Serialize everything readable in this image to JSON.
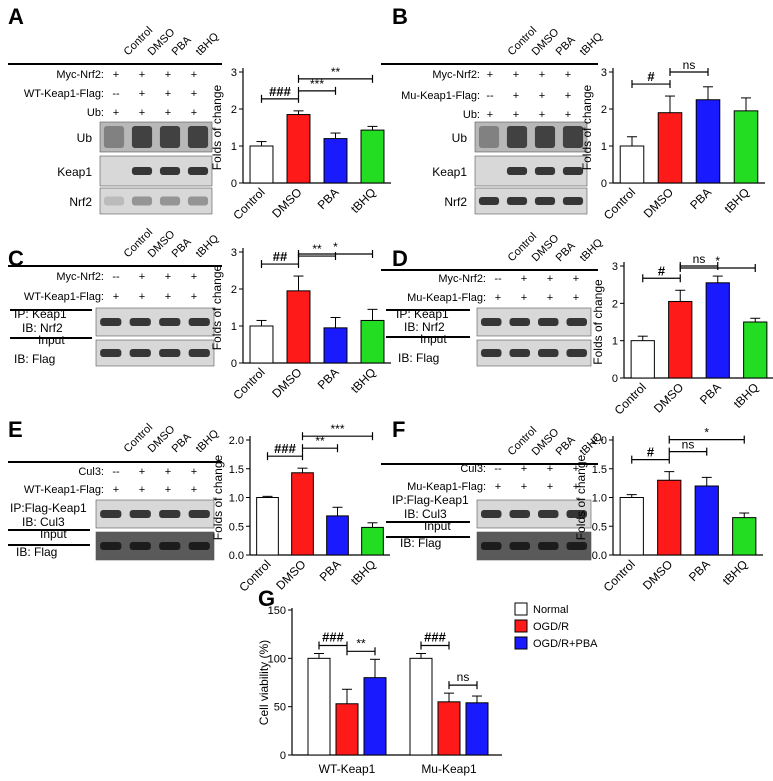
{
  "panels": [
    {
      "id": "A",
      "letter": "A",
      "conditions": [
        "Control",
        "DMSO",
        "PBA",
        "tBHQ"
      ],
      "rows": [
        {
          "label": "Myc-Nrf2:",
          "marks": [
            "+",
            "+",
            "+",
            "+"
          ]
        },
        {
          "label": "WT-Keap1-Flag:",
          "marks": [
            "--",
            "+",
            "+",
            "+"
          ]
        },
        {
          "label": "Ub:",
          "marks": [
            "+",
            "+",
            "+",
            "+"
          ]
        }
      ],
      "blots": [
        {
          "label": "Ub",
          "texture": "smear"
        },
        {
          "label": "Keap1",
          "texture": "bands-no-first"
        },
        {
          "label": "Nrf2",
          "texture": "faint"
        }
      ],
      "section_labels": []
    },
    {
      "id": "B",
      "letter": "B",
      "conditions": [
        "Control",
        "DMSO",
        "PBA",
        "tBHQ"
      ],
      "rows": [
        {
          "label": "Myc-Nrf2:",
          "marks": [
            "+",
            "+",
            "+",
            "+"
          ]
        },
        {
          "label": "Mu-Keap1-Flag:",
          "marks": [
            "--",
            "+",
            "+",
            "+"
          ]
        },
        {
          "label": "Ub:",
          "marks": [
            "+",
            "+",
            "+",
            "+"
          ]
        }
      ],
      "blots": [
        {
          "label": "Ub",
          "texture": "smear"
        },
        {
          "label": "Keap1",
          "texture": "bands-no-first"
        },
        {
          "label": "Nrf2",
          "texture": "bands"
        }
      ],
      "section_labels": []
    },
    {
      "id": "C",
      "letter": "C",
      "conditions": [
        "Control",
        "DMSO",
        "PBA",
        "tBHQ"
      ],
      "rows": [
        {
          "label": "Myc-Nrf2:",
          "marks": [
            "--",
            "+",
            "+",
            "+"
          ]
        },
        {
          "label": "WT-Keap1-Flag:",
          "marks": [
            "+",
            "+",
            "+",
            "+"
          ]
        }
      ],
      "blots": [
        {
          "label": "",
          "texture": "bands"
        },
        {
          "label": "",
          "texture": "bands"
        }
      ],
      "section_labels": [
        {
          "text": "IP:  Keap1"
        },
        {
          "text": "IB:  Nrf2"
        },
        {
          "text": "Input"
        },
        {
          "text": "IB:  Flag"
        }
      ]
    },
    {
      "id": "D",
      "letter": "D",
      "conditions": [
        "Control",
        "DMSO",
        "PBA",
        "tBHQ"
      ],
      "rows": [
        {
          "label": "Myc-Nrf2:",
          "marks": [
            "--",
            "+",
            "+",
            "+"
          ]
        },
        {
          "label": "Mu-Keap1-Flag:",
          "marks": [
            "+",
            "+",
            "+",
            "+"
          ]
        }
      ],
      "blots": [
        {
          "label": "",
          "texture": "bands"
        },
        {
          "label": "",
          "texture": "bands"
        }
      ],
      "section_labels": [
        {
          "text": "IP:  Keap1"
        },
        {
          "text": "IB:  Nrf2"
        },
        {
          "text": "Input"
        },
        {
          "text": "IB:  Flag"
        }
      ]
    },
    {
      "id": "E",
      "letter": "E",
      "conditions": [
        "Control",
        "DMSO",
        "PBA",
        "tBHQ"
      ],
      "rows": [
        {
          "label": "Cul3:",
          "marks": [
            "--",
            "+",
            "+",
            "+"
          ]
        },
        {
          "label": "WT-Keap1-Flag:",
          "marks": [
            "+",
            "+",
            "+",
            "+"
          ]
        }
      ],
      "blots": [
        {
          "label": "",
          "texture": "bands"
        },
        {
          "label": "",
          "texture": "noisy"
        }
      ],
      "section_labels": [
        {
          "text": "IP:Flag-Keap1"
        },
        {
          "text": "IB:  Cul3"
        },
        {
          "text": "Input"
        },
        {
          "text": "IB:  Flag"
        }
      ]
    },
    {
      "id": "F",
      "letter": "F",
      "conditions": [
        "Control",
        "DMSO",
        "PBA",
        "tBHQ"
      ],
      "rows": [
        {
          "label": "Cul3:",
          "marks": [
            "--",
            "+",
            "+",
            "+"
          ]
        },
        {
          "label": "Mu-Keap1-Flag:",
          "marks": [
            "+",
            "+",
            "+",
            "+"
          ]
        }
      ],
      "blots": [
        {
          "label": "",
          "texture": "bands"
        },
        {
          "label": "",
          "texture": "noisy"
        }
      ],
      "section_labels": [
        {
          "text": "IP:Flag-Keap1"
        },
        {
          "text": "IB:  Cul3"
        },
        {
          "text": "Input"
        },
        {
          "text": "IB:  Flag"
        }
      ]
    }
  ],
  "colors": {
    "control": "#ffffff",
    "dmso": "#ff1a1a",
    "pba": "#1a1aff",
    "tbhq": "#22dd22"
  },
  "chart_data": [
    {
      "id": "A",
      "type": "bar",
      "title": "",
      "ylabel": "Folds of change",
      "xlabel": "",
      "categories": [
        "Control",
        "DMSO",
        "PBA",
        "tBHQ"
      ],
      "values": [
        1.0,
        1.85,
        1.2,
        1.43
      ],
      "errors": [
        0.12,
        0.1,
        0.15,
        0.1
      ],
      "ylim": [
        0,
        3
      ],
      "yticks": [
        "0",
        "1",
        "2",
        "3"
      ],
      "annotations": [
        {
          "from": "Control",
          "to": "DMSO",
          "text": "###"
        },
        {
          "from": "DMSO",
          "to": "PBA",
          "text": "***"
        },
        {
          "from": "DMSO",
          "to": "tBHQ",
          "text": "**"
        }
      ]
    },
    {
      "id": "B",
      "type": "bar",
      "title": "",
      "ylabel": "Folds of change",
      "xlabel": "",
      "categories": [
        "Control",
        "DMSO",
        "PBA",
        "tBHQ"
      ],
      "values": [
        1.0,
        1.9,
        2.25,
        1.95
      ],
      "errors": [
        0.25,
        0.45,
        0.35,
        0.35
      ],
      "ylim": [
        0,
        3
      ],
      "yticks": [
        "0",
        "1",
        "2",
        "3"
      ],
      "annotations": [
        {
          "from": "Control",
          "to": "DMSO",
          "text": "#"
        },
        {
          "from": "DMSO",
          "to": "PBA",
          "text": "ns"
        }
      ]
    },
    {
      "id": "C",
      "type": "bar",
      "title": "",
      "ylabel": "Folds of change",
      "xlabel": "",
      "categories": [
        "Control",
        "DMSO",
        "PBA",
        "tBHQ"
      ],
      "values": [
        1.0,
        1.95,
        0.95,
        1.15
      ],
      "errors": [
        0.15,
        0.4,
        0.28,
        0.3
      ],
      "ylim": [
        0,
        3
      ],
      "yticks": [
        "0",
        "1",
        "2",
        "3"
      ],
      "annotations": [
        {
          "from": "Control",
          "to": "DMSO",
          "text": "##"
        },
        {
          "from": "DMSO",
          "to": "PBA",
          "text": "**"
        },
        {
          "from": "DMSO",
          "to": "tBHQ",
          "text": "*"
        }
      ]
    },
    {
      "id": "D",
      "type": "bar",
      "title": "",
      "ylabel": "Folds of change",
      "xlabel": "",
      "categories": [
        "Control",
        "DMSO",
        "PBA",
        "tBHQ"
      ],
      "values": [
        1.0,
        2.05,
        2.55,
        1.5
      ],
      "errors": [
        0.12,
        0.3,
        0.18,
        0.1
      ],
      "ylim": [
        0,
        3
      ],
      "yticks": [
        "0",
        "1",
        "2",
        "3"
      ],
      "annotations": [
        {
          "from": "Control",
          "to": "DMSO",
          "text": "#"
        },
        {
          "from": "DMSO",
          "to": "PBA",
          "text": "ns"
        },
        {
          "from": "DMSO",
          "to": "tBHQ",
          "text": "*"
        }
      ]
    },
    {
      "id": "E",
      "type": "bar",
      "title": "",
      "ylabel": "Folds of change",
      "xlabel": "",
      "categories": [
        "Control",
        "DMSO",
        "PBA",
        "tBHQ"
      ],
      "values": [
        1.0,
        1.43,
        0.68,
        0.48
      ],
      "errors": [
        0.02,
        0.08,
        0.15,
        0.08
      ],
      "ylim": [
        0,
        2.0
      ],
      "yticks": [
        "0.0",
        "0.5",
        "1.0",
        "1.5",
        "2.0"
      ],
      "annotations": [
        {
          "from": "Control",
          "to": "DMSO",
          "text": "###"
        },
        {
          "from": "DMSO",
          "to": "PBA",
          "text": "**"
        },
        {
          "from": "DMSO",
          "to": "tBHQ",
          "text": "***"
        }
      ]
    },
    {
      "id": "F",
      "type": "bar",
      "title": "",
      "ylabel": "Folds of change",
      "xlabel": "",
      "categories": [
        "Control",
        "DMSO",
        "PBA",
        "tBHQ"
      ],
      "values": [
        1.0,
        1.3,
        1.2,
        0.65
      ],
      "errors": [
        0.05,
        0.15,
        0.15,
        0.08
      ],
      "ylim": [
        0,
        2.0
      ],
      "yticks": [
        "0.0",
        "0.5",
        "1.0",
        "1.5",
        "2.0"
      ],
      "annotations": [
        {
          "from": "Control",
          "to": "DMSO",
          "text": "#"
        },
        {
          "from": "DMSO",
          "to": "PBA",
          "text": "ns"
        },
        {
          "from": "DMSO",
          "to": "tBHQ",
          "text": "*"
        }
      ]
    },
    {
      "id": "G",
      "type": "bar",
      "title": "",
      "ylabel": "Cell viability (%)",
      "xlabel": "",
      "categories": [
        "WT-Keap1",
        "Mu-Keap1"
      ],
      "series": [
        {
          "name": "Normal",
          "color": "#ffffff",
          "values": [
            100,
            100
          ],
          "errors": [
            5,
            5
          ]
        },
        {
          "name": "OGD/R",
          "color": "#ff1a1a",
          "values": [
            53,
            55
          ],
          "errors": [
            15,
            9
          ]
        },
        {
          "name": "OGD/R+PBA",
          "color": "#1a1aff",
          "values": [
            80,
            54
          ],
          "errors": [
            19,
            7
          ]
        }
      ],
      "ylim": [
        0,
        150
      ],
      "yticks": [
        "0",
        "50",
        "100",
        "150"
      ],
      "legend": "right",
      "annotations": [
        {
          "group": 0,
          "from": 0,
          "to": 1,
          "text": "###"
        },
        {
          "group": 0,
          "from": 1,
          "to": 2,
          "text": "**"
        },
        {
          "group": 1,
          "from": 0,
          "to": 1,
          "text": "###"
        },
        {
          "group": 1,
          "from": 1,
          "to": 2,
          "text": "ns"
        }
      ]
    }
  ],
  "panel_g": {
    "letter": "G"
  }
}
